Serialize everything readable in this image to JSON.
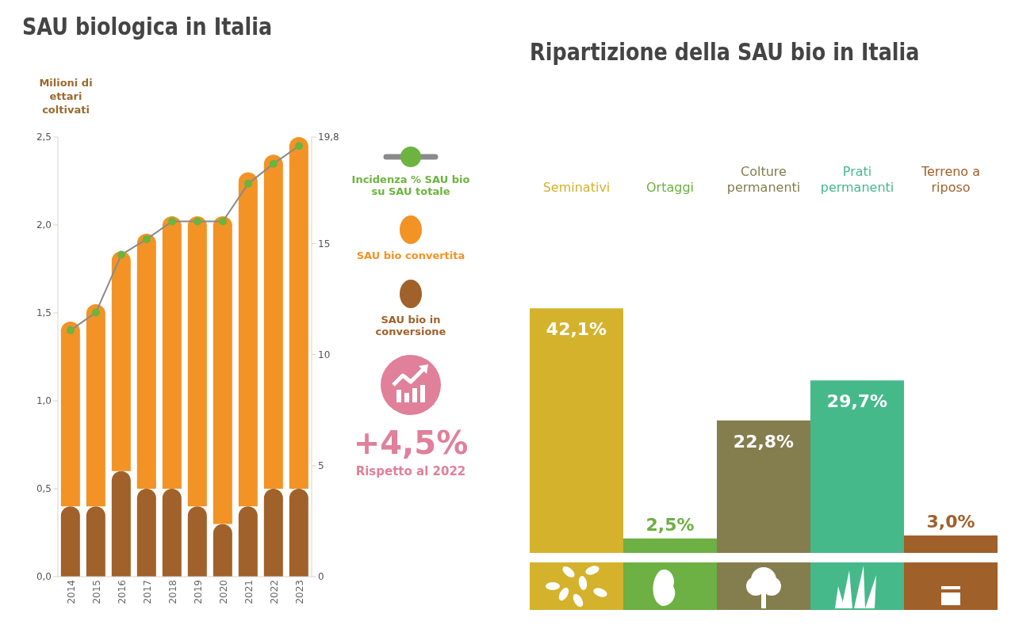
{
  "chart_data": [
    {
      "type": "bar",
      "title": "SAU biologica in Italia",
      "ylabel": "Milioni di ettari coltivati",
      "categories": [
        "2014",
        "2015",
        "2016",
        "2017",
        "2018",
        "2019",
        "2020",
        "2021",
        "2022",
        "2023"
      ],
      "stacked": true,
      "series": [
        {
          "name": "SAU bio in conversione",
          "color": "#a0612a",
          "values": [
            0.4,
            0.4,
            0.6,
            0.5,
            0.5,
            0.4,
            0.3,
            0.4,
            0.5,
            0.5
          ]
        },
        {
          "name": "SAU bio convertita",
          "color": "#f39325",
          "values": [
            1.05,
            1.15,
            1.25,
            1.45,
            1.55,
            1.65,
            1.75,
            1.9,
            1.9,
            2.0
          ]
        },
        {
          "name": "Incidenza % SAU bio su SAU totale",
          "type": "line",
          "axis": "y2",
          "color": "#6cb33f",
          "values": [
            11.1,
            11.9,
            14.5,
            15.2,
            16.0,
            16.0,
            16.0,
            17.7,
            18.6,
            19.4
          ]
        }
      ],
      "ylim": [
        0,
        2.5
      ],
      "yticks": [
        {
          "value": 0,
          "label": "0,0"
        },
        {
          "value": 0.5,
          "label": "0,5"
        },
        {
          "value": 1,
          "label": "1,0"
        },
        {
          "value": 1.5,
          "label": "1,5"
        },
        {
          "value": 2,
          "label": "2,0"
        },
        {
          "value": 2.5,
          "label": "2,5"
        }
      ],
      "y2lim": [
        0,
        19.8
      ],
      "y2ticks": [
        0,
        5,
        10,
        15,
        {
          "value": 19.8,
          "label": "19,8"
        }
      ],
      "marker": "circle",
      "legend": "right",
      "annotations": [
        "+4,5%",
        "Rispetto al 2022"
      ]
    },
    {
      "type": "bar",
      "title": "Ripartizione della SAU bio in Italia",
      "categories": [
        "Seminativi",
        "Ortaggi",
        "Colture permanenti",
        "Prati permanenti",
        "Terreno a riposo"
      ],
      "values": [
        42.1,
        2.5,
        22.8,
        29.7,
        3.0
      ],
      "colors": [
        "#d4b22c",
        "#6db043",
        "#847d4d",
        "#45b98a",
        "#a0602a"
      ],
      "value_labels": [
        "42,1%",
        "2,5%",
        "22,8%",
        "29,7%",
        "3,0%"
      ],
      "tick_labels": "x"
    }
  ]
}
